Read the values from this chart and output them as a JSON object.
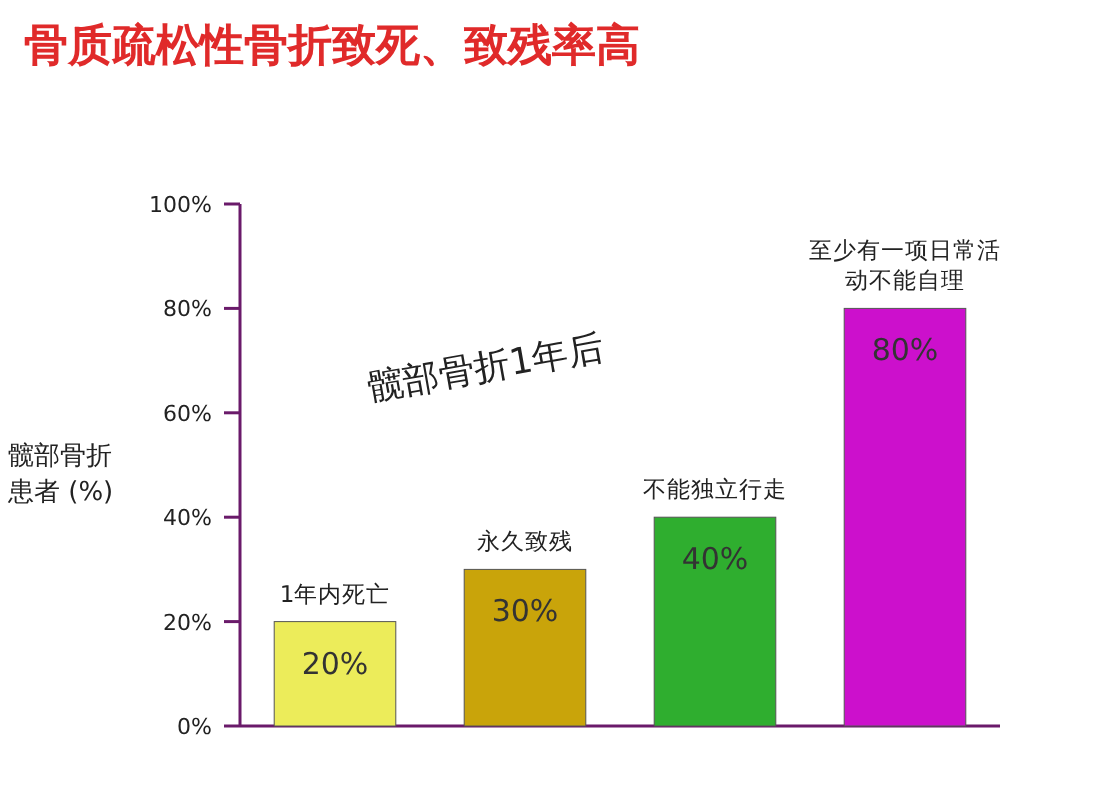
{
  "chart_data": {
    "type": "bar",
    "title": "骨质疏松性骨折致死、致残率高",
    "ylabel": "髋部骨折患者 (%)",
    "categories": [
      "1年内死亡",
      "永久致残",
      "不能独立行走",
      "至少有一项日常活动不能自理"
    ],
    "values": [
      20,
      30,
      40,
      80
    ],
    "colors": [
      "#ecec5a",
      "#c9a40a",
      "#2fae2f",
      "#cc10cc"
    ],
    "value_labels": [
      "20%",
      "30%",
      "40%",
      "80%"
    ],
    "ylim": [
      0,
      100
    ],
    "yticks": [
      {
        "value": 0,
        "label": "0%"
      },
      {
        "value": 20,
        "label": "20%"
      },
      {
        "value": 40,
        "label": "40%"
      },
      {
        "value": 60,
        "label": "60%"
      },
      {
        "value": 80,
        "label": "80%"
      },
      {
        "value": 100,
        "label": "100%"
      }
    ],
    "annotations": [
      "髋部骨折1年后"
    ]
  }
}
